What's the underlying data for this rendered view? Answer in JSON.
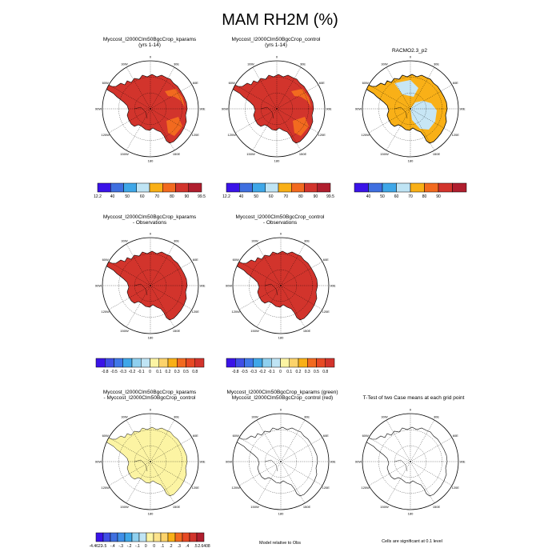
{
  "title": "MAM RH2M (%)",
  "colors": {
    "land_red": "#d2342c",
    "land_orange": "#f26a1f",
    "obs_orange": "#f9b017",
    "obs_lightblue": "#c7e6f5",
    "diff_yellow": "#fcf4a3",
    "coast": "#000000",
    "grid": "#000000"
  },
  "panels": [
    {
      "id": "p1",
      "title1": "Myccost_I2000Clm50BgcCrop_kparams",
      "title2": "(yrs 1-14)",
      "fill": "model"
    },
    {
      "id": "p2",
      "title1": "Myccost_I2000Clm50BgcCrop_control",
      "title2": "(yrs 1-14)",
      "fill": "model"
    },
    {
      "id": "p3",
      "title1": "RACMO2.3_p2",
      "title2": "",
      "fill": "obs"
    },
    {
      "id": "p4",
      "title1": "Myccost_I2000Clm50BgcCrop_kparams",
      "title2": "- Observations",
      "fill": "bias"
    },
    {
      "id": "p5",
      "title1": "Myccost_I2000Clm50BgcCrop_control",
      "title2": "- Observations",
      "fill": "bias"
    },
    {
      "id": "p7",
      "title1": "Myccost_I2000Clm50BgcCrop_kparams",
      "title2": "- Myccost_I2000Clm50BgcCrop_control",
      "fill": "diff"
    },
    {
      "id": "p8",
      "title1": "Myccost_I2000Clm50BgcCrop_kparams (green)",
      "title2": "Myccost_I2000Clm50BgcCrop_control (red)",
      "fill": "none"
    },
    {
      "id": "p9",
      "title1": "T-Test of two Case means at each grid point",
      "title2": "",
      "fill": "none"
    }
  ],
  "lon_labels": [
    "0",
    "30E",
    "60E",
    "90E",
    "120E",
    "150E",
    "180",
    "150W",
    "120W",
    "90W",
    "60W",
    "30W"
  ],
  "colorbars": [
    {
      "id": "cb1",
      "colors": [
        "#3a13e8",
        "#3f6fe0",
        "#3fa7e8",
        "#bfe4f4",
        "#f9b017",
        "#f26a1f",
        "#d2342c",
        "#b01e2e"
      ],
      "labels": [
        "12.2",
        "40",
        "50",
        "60",
        "70",
        "80",
        "90",
        "99.5"
      ],
      "label_mode": "edges_full"
    },
    {
      "id": "cb2",
      "colors": [
        "#3a13e8",
        "#3f6fe0",
        "#3fa7e8",
        "#bfe4f4",
        "#f9b017",
        "#f26a1f",
        "#d2342c",
        "#b01e2e"
      ],
      "labels": [
        "12.2",
        "40",
        "50",
        "60",
        "70",
        "80",
        "90",
        "99.5"
      ],
      "label_mode": "edges_full"
    },
    {
      "id": "cb3",
      "colors": [
        "#3a13e8",
        "#3f6fe0",
        "#3fa7e8",
        "#bfe4f4",
        "#f9b017",
        "#f26a1f",
        "#d2342c",
        "#b01e2e"
      ],
      "labels": [
        "40",
        "50",
        "60",
        "70",
        "80",
        "90"
      ],
      "label_mode": "interior"
    },
    {
      "id": "cb4",
      "colors": [
        "#3a13e8",
        "#3f4ee6",
        "#3f78e8",
        "#3fa7e8",
        "#8fd0ef",
        "#bfe4f4",
        "#fcf4a3",
        "#fcd36b",
        "#f9b017",
        "#f26a1f",
        "#e84a24",
        "#d2342c"
      ],
      "labels": [
        "-0.8",
        "-0.5",
        "-0.3",
        "-0.2",
        "-0.1",
        "0",
        "0.1",
        "0.2",
        "0.3",
        "0.5",
        "0.8"
      ],
      "label_mode": "interior"
    },
    {
      "id": "cb5",
      "colors": [
        "#3a13e8",
        "#3f4ee6",
        "#3f78e8",
        "#3fa7e8",
        "#8fd0ef",
        "#bfe4f4",
        "#fcf4a3",
        "#fcd36b",
        "#f9b017",
        "#f26a1f",
        "#e84a24",
        "#d2342c"
      ],
      "labels": [
        "-0.8",
        "-0.5",
        "-0.3",
        "-0.2",
        "-0.1",
        "0",
        "0.1",
        "0.2",
        "0.3",
        "0.5",
        "0.8"
      ],
      "label_mode": "interior"
    },
    {
      "id": "cb7",
      "colors": [
        "#3a13e8",
        "#3f4ee6",
        "#3f6fe0",
        "#3f8fe8",
        "#3fa7e8",
        "#8fd0ef",
        "#bfe4f4",
        "#fcf4a3",
        "#fce38b",
        "#fcd36b",
        "#f9b017",
        "#f26a1f",
        "#e84a24",
        "#d2342c",
        "#b01e2e"
      ],
      "labels": [
        "-4.4622",
        "-.5",
        "-.4",
        "-.3",
        "-.2",
        "-.1",
        "0",
        "0",
        ".1",
        ".2",
        ".3",
        ".4",
        ".5",
        "2.6408"
      ],
      "label_mode": "edges_full_less"
    }
  ],
  "footnotes": {
    "model_obs": "Model relative to Obs",
    "ttest": "Cells are significant at 0.1 level"
  },
  "chart_data": {
    "type": "heatmap",
    "title": "MAM RH2M (%)",
    "projection": "south polar stereographic",
    "panels": [
      "Myccost_I2000Clm50BgcCrop_kparams (yrs 1-14)",
      "Myccost_I2000Clm50BgcCrop_control (yrs 1-14)",
      "RACMO2.3_p2",
      "Myccost_I2000Clm50BgcCrop_kparams - Observations",
      "Myccost_I2000Clm50BgcCrop_control - Observations",
      "Myccost_I2000Clm50BgcCrop_kparams - Myccost_I2000Clm50BgcCrop_control",
      "Myccost_I2000Clm50BgcCrop_kparams (green) Myccost_I2000Clm50BgcCrop_control (red)",
      "T-Test of two Case means at each grid point"
    ],
    "colorbar_mean_levels": [
      "12.2",
      "40",
      "50",
      "60",
      "70",
      "80",
      "90",
      "99.5"
    ],
    "colorbar_bias_levels": [
      "-0.8",
      "-0.5",
      "-0.3",
      "-0.2",
      "-0.1",
      "0",
      "0.1",
      "0.2",
      "0.3",
      "0.5",
      "0.8"
    ],
    "colorbar_diff_levels": [
      "-4.4622",
      "-.5",
      "-.4",
      "-.3",
      "-.2",
      "-.1",
      "0",
      "0",
      ".1",
      ".2",
      ".3",
      ".4",
      ".5",
      "2.6408"
    ]
  }
}
